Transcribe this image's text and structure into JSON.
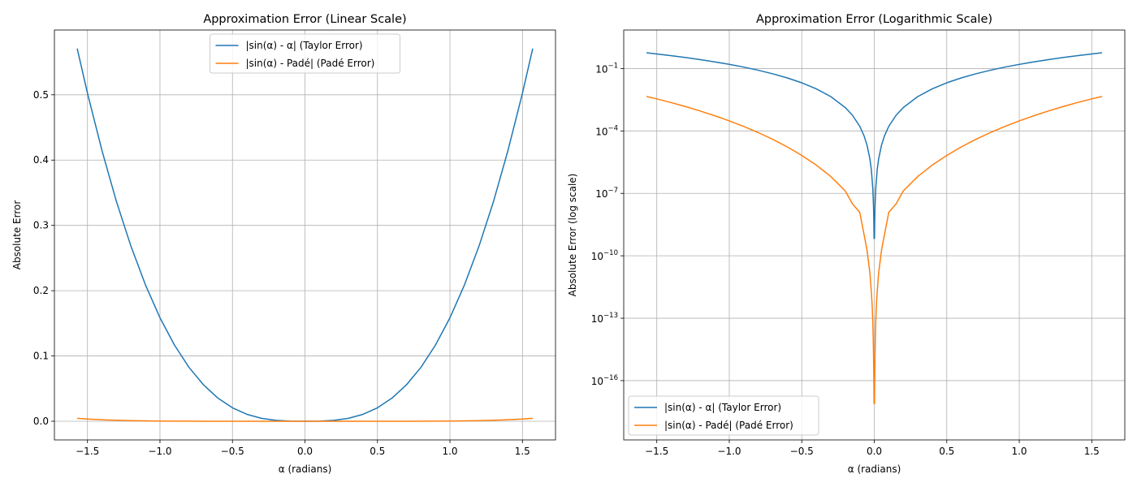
{
  "chart_data": [
    {
      "type": "line",
      "title": "Approximation Error (Linear Scale)",
      "xlabel": "α (radians)",
      "ylabel": "Absolute Error",
      "xlim": [
        -1.728,
        1.728
      ],
      "ylim": [
        -0.0286,
        0.5992
      ],
      "yscale": "linear",
      "grid": true,
      "legend_position": "upper-center",
      "x_ticks": [
        -1.5,
        -1.0,
        -0.5,
        0.0,
        0.5,
        1.0,
        1.5
      ],
      "x_tick_labels": [
        "−1.5",
        "−1.0",
        "−0.5",
        "0.0",
        "0.5",
        "1.0",
        "1.5"
      ],
      "y_ticks": [
        0.0,
        0.1,
        0.2,
        0.3,
        0.4,
        0.5
      ],
      "y_tick_labels": [
        "0.0",
        "0.1",
        "0.2",
        "0.3",
        "0.4",
        "0.5"
      ],
      "series": [
        {
          "name": "|sin(α) - α| (Taylor Error)",
          "color": "#1f77b4",
          "x": [
            -1.5708,
            -1.5,
            -1.4,
            -1.3,
            -1.2,
            -1.1,
            -1.0,
            -0.9,
            -0.8,
            -0.7,
            -0.6,
            -0.5,
            -0.4,
            -0.3,
            -0.2,
            -0.1,
            0.0,
            0.1,
            0.2,
            0.3,
            0.4,
            0.5,
            0.6,
            0.7,
            0.8,
            0.9,
            1.0,
            1.1,
            1.2,
            1.3,
            1.4,
            1.5,
            1.5708
          ],
          "y": [
            0.5708,
            0.5025,
            0.4146,
            0.3364,
            0.268,
            0.2088,
            0.1585,
            0.1167,
            0.0826,
            0.0558,
            0.0354,
            0.0206,
            0.0106,
            0.00448,
            0.00133,
            0.000167,
            0.0,
            0.000167,
            0.00133,
            0.00448,
            0.0106,
            0.0206,
            0.0354,
            0.0558,
            0.0826,
            0.1167,
            0.1585,
            0.2088,
            0.268,
            0.3364,
            0.4146,
            0.5025,
            0.5708
          ]
        },
        {
          "name": "|sin(α) - Padé| (Padé Error)",
          "color": "#ff7f0e",
          "x": [
            -1.5708,
            -1.5,
            -1.4,
            -1.3,
            -1.2,
            -1.1,
            -1.0,
            -0.9,
            -0.8,
            -0.7,
            -0.6,
            -0.5,
            -0.4,
            -0.3,
            -0.2,
            -0.1,
            0.0,
            0.1,
            0.2,
            0.3,
            0.4,
            0.5,
            0.6,
            0.7,
            0.8,
            0.9,
            1.0,
            1.1,
            1.2,
            1.3,
            1.4,
            1.5,
            1.5708
          ],
          "y": [
            0.00453,
            0.00348,
            0.0023,
            0.00147,
            0.000906,
            0.000537,
            0.000305,
            0.000164,
            8.32e-05,
            3.94e-05,
            1.71e-05,
            6.65e-06,
            2.28e-06,
            6.49e-07,
            1.31e-07,
            1.22e-08,
            0.0,
            1.22e-08,
            1.31e-07,
            6.49e-07,
            2.28e-06,
            6.65e-06,
            1.71e-05,
            3.94e-05,
            8.32e-05,
            0.000164,
            0.000305,
            0.000537,
            0.000906,
            0.00147,
            0.0023,
            0.00348,
            0.00453
          ]
        }
      ]
    },
    {
      "type": "line",
      "title": "Approximation Error (Logarithmic Scale)",
      "xlabel": "α (radians)",
      "ylabel": "Absolute Error (log scale)",
      "xlim": [
        -1.728,
        1.728
      ],
      "ylim_exponent": [
        -18.85,
        0.85
      ],
      "yscale": "log",
      "grid": true,
      "legend_position": "lower-left",
      "x_ticks": [
        -1.5,
        -1.0,
        -0.5,
        0.0,
        0.5,
        1.0,
        1.5
      ],
      "x_tick_labels": [
        "−1.5",
        "−1.0",
        "−0.5",
        "0.0",
        "0.5",
        "1.0",
        "1.5"
      ],
      "y_tick_exponents": [
        -16,
        -13,
        -10,
        -7,
        -4,
        -1
      ],
      "y_tick_base": "10",
      "y_tick_exponent_labels": [
        "−16",
        "−13",
        "−10",
        "−7",
        "−4",
        "−1"
      ],
      "series": [
        {
          "name": "|sin(α) - α| (Taylor Error)",
          "color": "#1f77b4",
          "x": [
            -1.5708,
            -1.5,
            -1.4,
            -1.3,
            -1.2,
            -1.1,
            -1.0,
            -0.9,
            -0.8,
            -0.7,
            -0.6,
            -0.5,
            -0.4,
            -0.3,
            -0.2,
            -0.15,
            -0.1,
            -0.07,
            -0.05,
            -0.03,
            -0.02,
            -0.01,
            -0.005,
            -0.003,
            -0.0016,
            0.0016,
            0.003,
            0.005,
            0.01,
            0.02,
            0.03,
            0.05,
            0.07,
            0.1,
            0.15,
            0.2,
            0.3,
            0.4,
            0.5,
            0.6,
            0.7,
            0.8,
            0.9,
            1.0,
            1.1,
            1.2,
            1.3,
            1.4,
            1.5,
            1.5708
          ],
          "y": [
            0.5708,
            0.5025,
            0.4146,
            0.3364,
            0.268,
            0.2088,
            0.1585,
            0.1167,
            0.0826,
            0.0558,
            0.0354,
            0.0206,
            0.0106,
            0.00448,
            0.00133,
            0.000562,
            0.000167,
            5.72e-05,
            2.08e-05,
            4.5e-06,
            1.33e-06,
            1.67e-07,
            2.08e-08,
            4.5e-09,
            6.8e-10,
            6.8e-10,
            4.5e-09,
            2.08e-08,
            1.67e-07,
            1.33e-06,
            4.5e-06,
            2.08e-05,
            5.72e-05,
            0.000167,
            0.000562,
            0.00133,
            0.00448,
            0.0106,
            0.0206,
            0.0354,
            0.0558,
            0.0826,
            0.1167,
            0.1585,
            0.2088,
            0.268,
            0.3364,
            0.4146,
            0.5025,
            0.5708
          ]
        },
        {
          "name": "|sin(α) - Padé| (Padé Error)",
          "color": "#ff7f0e",
          "x": [
            -1.5708,
            -1.5,
            -1.4,
            -1.3,
            -1.2,
            -1.1,
            -1.0,
            -0.9,
            -0.8,
            -0.7,
            -0.6,
            -0.5,
            -0.4,
            -0.3,
            -0.2,
            -0.15,
            -0.1,
            -0.07,
            -0.05,
            -0.03,
            -0.02,
            -0.015,
            -0.01,
            -0.007,
            -0.005,
            -0.003,
            -0.0016,
            0.0016,
            0.003,
            0.005,
            0.007,
            0.01,
            0.015,
            0.02,
            0.03,
            0.05,
            0.07,
            0.1,
            0.15,
            0.2,
            0.3,
            0.4,
            0.5,
            0.6,
            0.7,
            0.8,
            0.9,
            1.0,
            1.1,
            1.2,
            1.3,
            1.4,
            1.5,
            1.5708
          ],
          "y": [
            0.00453,
            0.00348,
            0.0023,
            0.00147,
            0.000906,
            0.000537,
            0.000305,
            0.000164,
            8.32e-05,
            3.94e-05,
            1.71e-05,
            6.65e-06,
            2.28e-06,
            6.49e-07,
            1.31e-07,
            3.11e-08,
            1.22e-08,
            1.01e-09,
            1.89e-10,
            1.45e-11,
            1.75e-12,
            4.68e-13,
            6.67e-14,
            8.22e-15,
            1.51e-15,
            1.21e-16,
            7.9e-18,
            7.9e-18,
            1.21e-16,
            1.51e-15,
            8.22e-15,
            6.67e-14,
            4.68e-13,
            1.75e-12,
            1.45e-11,
            1.89e-10,
            1.01e-09,
            1.22e-08,
            3.11e-08,
            1.31e-07,
            6.49e-07,
            2.28e-06,
            6.65e-06,
            1.71e-05,
            3.94e-05,
            8.32e-05,
            0.000164,
            0.000305,
            0.000537,
            0.000906,
            0.00147,
            0.0023,
            0.00348,
            0.00453
          ]
        }
      ]
    }
  ]
}
